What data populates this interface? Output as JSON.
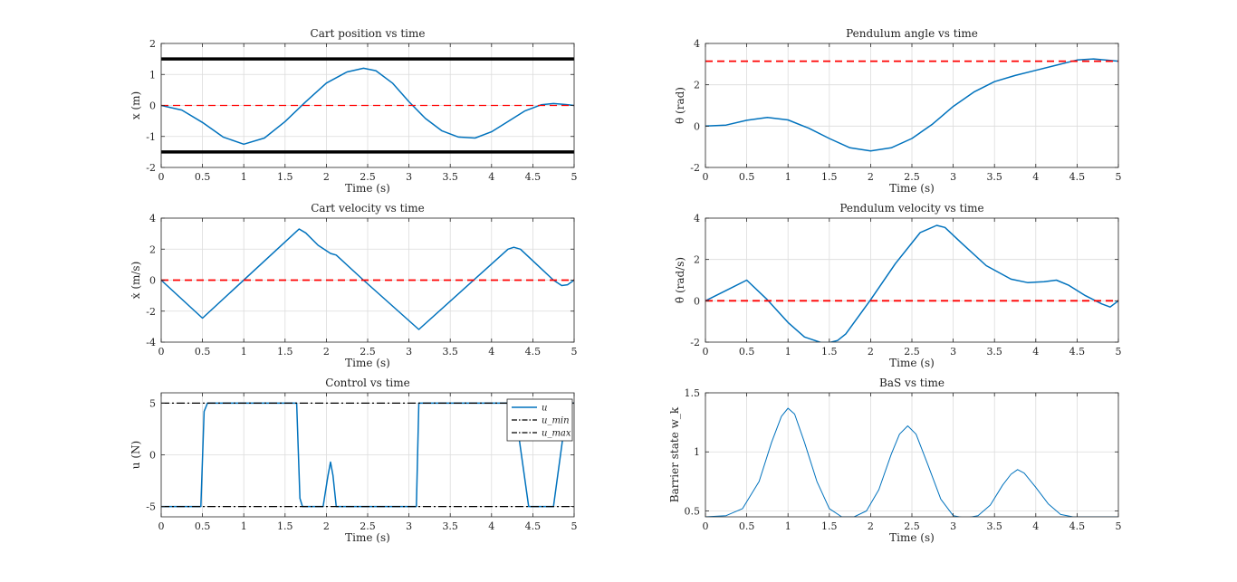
{
  "figure": {
    "background": "#ffffff",
    "series_color": "#0072BD",
    "reference_color": "#FF0000",
    "bound_color": "#000000"
  },
  "chart_data": [
    {
      "id": "cart-position",
      "type": "line",
      "title": "Cart position vs time",
      "xlabel": "Time (s)",
      "ylabel": "x (m)",
      "xlim": [
        0,
        5
      ],
      "ylim": [
        -2,
        2
      ],
      "xticks": [
        0,
        0.5,
        1,
        1.5,
        2,
        2.5,
        3,
        3.5,
        4,
        4.5,
        5
      ],
      "yticks": [
        -2,
        -1,
        0,
        1,
        2
      ],
      "grid": true,
      "series": [
        {
          "style": "solid",
          "color": "#0072BD",
          "width": 1.5,
          "x": [
            0,
            0.25,
            0.5,
            0.75,
            1,
            1.25,
            1.5,
            1.75,
            2,
            2.25,
            2.45,
            2.6,
            2.8,
            3,
            3.2,
            3.4,
            3.6,
            3.8,
            4,
            4.2,
            4.4,
            4.6,
            4.75,
            4.9,
            5
          ],
          "y": [
            0,
            -0.15,
            -0.55,
            -1.02,
            -1.25,
            -1.05,
            -0.52,
            0.12,
            0.72,
            1.08,
            1.2,
            1.12,
            0.72,
            0.12,
            -0.42,
            -0.82,
            -1.02,
            -1.05,
            -0.85,
            -0.52,
            -0.18,
            0.02,
            0.06,
            0.03,
            0
          ]
        },
        {
          "style": "dashed",
          "color": "#FF0000",
          "width": 1.2,
          "x": [
            0,
            5
          ],
          "y": [
            0,
            0
          ]
        },
        {
          "style": "solid",
          "color": "#000000",
          "width": 3.5,
          "x": [
            0,
            5
          ],
          "y": [
            1.5,
            1.5
          ]
        },
        {
          "style": "solid",
          "color": "#000000",
          "width": 3.5,
          "x": [
            0,
            5
          ],
          "y": [
            -1.5,
            -1.5
          ]
        }
      ]
    },
    {
      "id": "pendulum-angle",
      "type": "line",
      "title": "Pendulum angle vs time",
      "xlabel": "Time (s)",
      "ylabel": "θ (rad)",
      "xlim": [
        0,
        5
      ],
      "ylim": [
        -2,
        4
      ],
      "xticks": [
        0,
        0.5,
        1,
        1.5,
        2,
        2.5,
        3,
        3.5,
        4,
        4.5,
        5
      ],
      "yticks": [
        -2,
        0,
        2,
        4
      ],
      "grid": true,
      "series": [
        {
          "style": "solid",
          "color": "#0072BD",
          "width": 1.5,
          "x": [
            0,
            0.25,
            0.5,
            0.75,
            1,
            1.25,
            1.5,
            1.75,
            2,
            2.25,
            2.5,
            2.75,
            3,
            3.25,
            3.5,
            3.75,
            4,
            4.25,
            4.5,
            4.7,
            4.9,
            5
          ],
          "y": [
            0,
            0.05,
            0.28,
            0.42,
            0.3,
            -0.1,
            -0.6,
            -1.05,
            -1.2,
            -1.05,
            -0.6,
            0.1,
            0.95,
            1.65,
            2.15,
            2.45,
            2.7,
            2.95,
            3.2,
            3.25,
            3.18,
            3.14
          ]
        },
        {
          "style": "dashed",
          "color": "#FF0000",
          "width": 1.8,
          "x": [
            0,
            5
          ],
          "y": [
            3.14,
            3.14
          ]
        }
      ]
    },
    {
      "id": "cart-velocity",
      "type": "line",
      "title": "Cart velocity vs time",
      "xlabel": "Time (s)",
      "ylabel": "ẋ (m/s)",
      "xlim": [
        0,
        5
      ],
      "ylim": [
        -4,
        4
      ],
      "xticks": [
        0,
        0.5,
        1,
        1.5,
        2,
        2.5,
        3,
        3.5,
        4,
        4.5,
        5
      ],
      "yticks": [
        -4,
        -2,
        0,
        2,
        4
      ],
      "grid": true,
      "series": [
        {
          "style": "solid",
          "color": "#0072BD",
          "width": 1.5,
          "x": [
            0,
            0.5,
            1.67,
            1.75,
            1.9,
            2.05,
            2.12,
            2.45,
            3.12,
            4.2,
            4.27,
            4.35,
            4.55,
            4.75,
            4.85,
            4.92,
            5
          ],
          "y": [
            0,
            -2.45,
            3.3,
            3.05,
            2.25,
            1.72,
            1.62,
            0,
            -3.18,
            2.0,
            2.12,
            2.0,
            1.0,
            0.0,
            -0.35,
            -0.3,
            0
          ]
        },
        {
          "style": "dashed",
          "color": "#FF0000",
          "width": 1.8,
          "x": [
            0,
            5
          ],
          "y": [
            0,
            0
          ]
        }
      ]
    },
    {
      "id": "pendulum-velocity",
      "type": "line",
      "title": "Pendulum velocity vs time",
      "xlabel": "Time (s)",
      "ylabel": "θ̇ (rad/s)",
      "xlim": [
        0,
        5
      ],
      "ylim": [
        -2,
        4
      ],
      "xticks": [
        0,
        0.5,
        1,
        1.5,
        2,
        2.5,
        3,
        3.5,
        4,
        4.5,
        5
      ],
      "yticks": [
        -2,
        0,
        2,
        4
      ],
      "grid": true,
      "series": [
        {
          "style": "solid",
          "color": "#0072BD",
          "width": 1.5,
          "x": [
            0,
            0.25,
            0.5,
            0.75,
            1,
            1.2,
            1.4,
            1.5,
            1.6,
            1.7,
            2,
            2.3,
            2.6,
            2.8,
            2.9,
            3.1,
            3.4,
            3.7,
            3.9,
            4.1,
            4.25,
            4.4,
            4.6,
            4.8,
            4.9,
            5
          ],
          "y": [
            0,
            0.5,
            1.0,
            0.05,
            -1.05,
            -1.75,
            -2.02,
            -2.02,
            -1.92,
            -1.6,
            0.05,
            1.8,
            3.3,
            3.65,
            3.55,
            2.8,
            1.7,
            1.05,
            0.88,
            0.92,
            1.0,
            0.75,
            0.25,
            -0.15,
            -0.3,
            0
          ]
        },
        {
          "style": "dashed",
          "color": "#FF0000",
          "width": 1.8,
          "x": [
            0,
            5
          ],
          "y": [
            0,
            0
          ]
        }
      ]
    },
    {
      "id": "control",
      "type": "line",
      "title": "Control vs time",
      "xlabel": "Time (s)",
      "ylabel": "u (N)",
      "xlim": [
        0,
        5
      ],
      "ylim": [
        -6,
        6
      ],
      "xticks": [
        0,
        0.5,
        1,
        1.5,
        2,
        2.5,
        3,
        3.5,
        4,
        4.5,
        5
      ],
      "yticks": [
        -5,
        0,
        5
      ],
      "grid": true,
      "legend": {
        "position": "top-right",
        "entries": [
          "u",
          "u_min",
          "u_max"
        ]
      },
      "series": [
        {
          "name": "u",
          "style": "solid",
          "color": "#0072BD",
          "width": 1.5,
          "x": [
            0,
            0.48,
            0.52,
            0.56,
            1.64,
            1.68,
            1.71,
            1.96,
            2.02,
            2.05,
            2.08,
            2.12,
            2.2,
            3.09,
            3.12,
            4.26,
            4.3,
            4.45,
            4.75,
            4.92,
            5
          ],
          "y": [
            -5,
            -5,
            4.2,
            5,
            5,
            -4.2,
            -5,
            -5,
            -2.0,
            -0.7,
            -2.0,
            -5,
            -5,
            -5,
            5,
            5,
            3.5,
            -5,
            -5,
            5,
            5
          ]
        },
        {
          "name": "u_min",
          "style": "dashdot",
          "color": "#000000",
          "width": 1.2,
          "x": [
            0,
            5
          ],
          "y": [
            -5,
            -5
          ]
        },
        {
          "name": "u_max",
          "style": "dashdot",
          "color": "#000000",
          "width": 1.2,
          "x": [
            0,
            5
          ],
          "y": [
            5,
            5
          ]
        }
      ]
    },
    {
      "id": "bas",
      "type": "line",
      "title": "BaS vs time",
      "xlabel": "Time (s)",
      "ylabel": "Barrier state w_k",
      "xlim": [
        0,
        5
      ],
      "ylim": [
        0.45,
        1.5
      ],
      "xticks": [
        0,
        0.5,
        1,
        1.5,
        2,
        2.5,
        3,
        3.5,
        4,
        4.5,
        5
      ],
      "yticks": [
        0.5,
        1,
        1.5
      ],
      "grid": true,
      "series": [
        {
          "style": "solid",
          "color": "#0072BD",
          "width": 1.0,
          "x": [
            0,
            0.25,
            0.45,
            0.65,
            0.8,
            0.92,
            1.0,
            1.08,
            1.2,
            1.35,
            1.5,
            1.65,
            1.8,
            1.95,
            2.1,
            2.25,
            2.35,
            2.45,
            2.55,
            2.7,
            2.85,
            3.0,
            3.15,
            3.3,
            3.45,
            3.6,
            3.7,
            3.78,
            3.86,
            4.0,
            4.15,
            4.3,
            4.45,
            4.6,
            4.8,
            5
          ],
          "y": [
            0.45,
            0.46,
            0.52,
            0.75,
            1.08,
            1.3,
            1.37,
            1.32,
            1.08,
            0.75,
            0.52,
            0.45,
            0.45,
            0.5,
            0.68,
            0.98,
            1.15,
            1.22,
            1.15,
            0.88,
            0.6,
            0.46,
            0.44,
            0.46,
            0.55,
            0.72,
            0.81,
            0.85,
            0.82,
            0.7,
            0.56,
            0.47,
            0.45,
            0.45,
            0.45,
            0.45
          ]
        }
      ]
    }
  ]
}
